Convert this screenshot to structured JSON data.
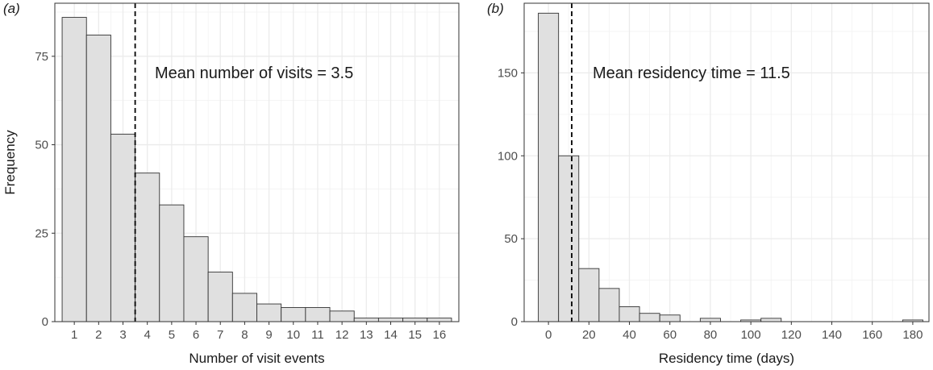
{
  "chart_data": [
    {
      "type": "bar",
      "panel_label": "(a)",
      "title": "",
      "xlabel": "Number of visit events",
      "ylabel": "Frequency",
      "x_ticks": [
        1,
        2,
        3,
        4,
        5,
        6,
        7,
        8,
        9,
        10,
        11,
        12,
        13,
        14,
        15,
        16
      ],
      "y_ticks": [
        0,
        25,
        50,
        75
      ],
      "xlim": [
        0.2,
        16.8
      ],
      "ylim": [
        0,
        90
      ],
      "bins": [
        {
          "x": 1,
          "count": 86
        },
        {
          "x": 2,
          "count": 81
        },
        {
          "x": 3,
          "count": 53
        },
        {
          "x": 4,
          "count": 42
        },
        {
          "x": 5,
          "count": 33
        },
        {
          "x": 6,
          "count": 24
        },
        {
          "x": 7,
          "count": 14
        },
        {
          "x": 8,
          "count": 8
        },
        {
          "x": 9,
          "count": 5
        },
        {
          "x": 10,
          "count": 4
        },
        {
          "x": 11,
          "count": 4
        },
        {
          "x": 12,
          "count": 3
        },
        {
          "x": 13,
          "count": 1
        },
        {
          "x": 14,
          "count": 1
        },
        {
          "x": 15,
          "count": 1
        },
        {
          "x": 16,
          "count": 1
        }
      ],
      "bin_width": 1,
      "mean_line": 3.5,
      "annotation": "Mean number of visits = 3.5",
      "fill_color": "#e0e0e0",
      "edge_color": "#333333",
      "grid": true
    },
    {
      "type": "bar",
      "panel_label": "(b)",
      "title": "",
      "xlabel": "Residency time (days)",
      "ylabel": "",
      "x_ticks": [
        0,
        20,
        40,
        60,
        80,
        100,
        120,
        140,
        160,
        180
      ],
      "y_ticks": [
        0,
        50,
        100,
        150
      ],
      "xlim": [
        -12,
        188
      ],
      "ylim": [
        0,
        192
      ],
      "bins": [
        {
          "x": 0,
          "count": 186
        },
        {
          "x": 10,
          "count": 100
        },
        {
          "x": 20,
          "count": 32
        },
        {
          "x": 30,
          "count": 20
        },
        {
          "x": 40,
          "count": 9
        },
        {
          "x": 50,
          "count": 5
        },
        {
          "x": 60,
          "count": 4
        },
        {
          "x": 70,
          "count": 0
        },
        {
          "x": 80,
          "count": 2
        },
        {
          "x": 90,
          "count": 0
        },
        {
          "x": 100,
          "count": 1
        },
        {
          "x": 110,
          "count": 2
        },
        {
          "x": 120,
          "count": 0
        },
        {
          "x": 130,
          "count": 0
        },
        {
          "x": 140,
          "count": 0
        },
        {
          "x": 150,
          "count": 0
        },
        {
          "x": 160,
          "count": 0
        },
        {
          "x": 170,
          "count": 0
        },
        {
          "x": 180,
          "count": 1
        }
      ],
      "bin_width": 10,
      "mean_line": 11.5,
      "annotation": "Mean residency time = 11.5",
      "fill_color": "#e0e0e0",
      "edge_color": "#333333",
      "grid": true
    }
  ]
}
